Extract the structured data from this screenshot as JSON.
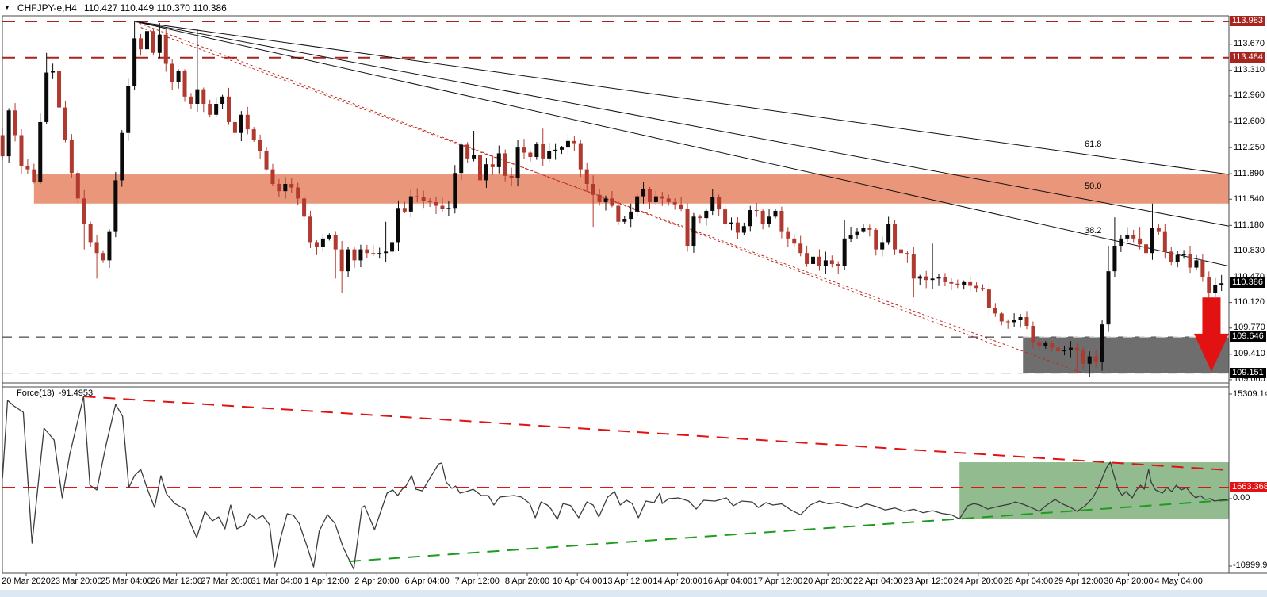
{
  "title": {
    "symbol": "CHFJPY-e,H4",
    "quotes": "110.427 110.449 110.370 110.386"
  },
  "colors": {
    "bull": "#0A0A0A",
    "bear": "#B03A30",
    "supply_zone": "#E9967A",
    "demand_zone": "#6E6E6E",
    "indicator_zone": "#92BC90",
    "maroon": "#A8241E",
    "black_line": "#1A1A1A",
    "bright_red": "#E31212",
    "green": "#1E9C1E",
    "force_line": "#3C3C3C",
    "border": "#4A4A4A",
    "badge_black": "#000000",
    "badge_text": "#FFFFFF",
    "bottom_strip": "#DCE9F5"
  },
  "chart_data": [
    {
      "type": "candlestick",
      "panel": "price",
      "symbol": "CHFJPY-e",
      "timeframe": "H4",
      "ylim": [
        109.0,
        114.06
      ],
      "x_tick_labels": [
        "20 Mar 2020",
        "23 Mar 20:00",
        "25 Mar 04:00",
        "26 Mar 12:00",
        "27 Mar 20:00",
        "31 Mar 04:00",
        "1 Apr 12:00",
        "2 Apr 20:00",
        "6 Apr 04:00",
        "7 Apr 12:00",
        "8 Apr 20:00",
        "10 Apr 04:00",
        "13 Apr 12:00",
        "14 Apr 20:00",
        "16 Apr 04:00",
        "17 Apr 12:00",
        "20 Apr 20:00",
        "22 Apr 04:00",
        "23 Apr 12:00",
        "24 Apr 20:00",
        "28 Apr 04:00",
        "29 Apr 12:00",
        "30 Apr 20:00",
        "4 May 04:00"
      ],
      "y_tick_labels": [
        "113.670",
        "113.310",
        "112.960",
        "112.600",
        "112.250",
        "111.890",
        "111.540",
        "111.180",
        "110.830",
        "110.470",
        "110.120",
        "109.770",
        "109.410",
        "109.060"
      ],
      "first_open": 112.42,
      "closes": [
        112.13,
        112.76,
        112.42,
        112.0,
        111.95,
        111.78,
        112.6,
        113.28,
        113.3,
        112.8,
        112.35,
        111.9,
        111.55,
        111.2,
        110.95,
        110.8,
        110.7,
        111.1,
        111.8,
        112.45,
        113.1,
        113.75,
        113.6,
        113.85,
        113.55,
        113.8,
        113.4,
        113.15,
        113.3,
        112.95,
        112.85,
        113.05,
        112.85,
        112.7,
        112.85,
        112.95,
        112.6,
        112.45,
        112.7,
        112.5,
        112.35,
        112.2,
        111.95,
        111.75,
        111.65,
        111.75,
        111.7,
        111.55,
        111.3,
        110.95,
        110.88,
        111.0,
        111.05,
        110.85,
        110.55,
        110.85,
        110.7,
        110.85,
        110.8,
        110.78,
        110.8,
        110.82,
        110.95,
        111.42,
        111.37,
        111.58,
        111.57,
        111.52,
        111.5,
        111.45,
        111.41,
        111.42,
        111.9,
        112.29,
        112.1,
        112.15,
        111.8,
        112.02,
        111.98,
        112.17,
        111.86,
        111.83,
        112.25,
        112.18,
        112.12,
        112.3,
        112.1,
        112.2,
        112.22,
        112.25,
        112.34,
        112.31,
        111.95,
        111.75,
        111.6,
        111.5,
        111.55,
        111.45,
        111.23,
        111.27,
        111.37,
        111.58,
        111.68,
        111.5,
        111.58,
        111.55,
        111.5,
        111.47,
        111.41,
        110.9,
        111.3,
        111.28,
        111.38,
        111.57,
        111.4,
        111.2,
        111.22,
        111.08,
        111.17,
        111.39,
        111.38,
        111.2,
        111.3,
        111.38,
        111.1,
        111.0,
        110.93,
        110.8,
        110.65,
        110.75,
        110.62,
        110.7,
        110.65,
        110.62,
        111.0,
        111.05,
        111.1,
        111.15,
        111.12,
        110.85,
        110.95,
        111.2,
        110.85,
        110.8,
        110.78,
        110.45,
        110.48,
        110.43,
        110.45,
        110.47,
        110.4,
        110.38,
        110.36,
        110.4,
        110.35,
        110.32,
        110.3,
        110.05,
        109.97,
        109.86,
        109.85,
        109.88,
        109.92,
        109.8,
        109.58,
        109.52,
        109.56,
        109.5,
        109.45,
        109.47,
        109.5,
        109.46,
        109.28,
        109.38,
        109.3,
        109.82,
        110.55,
        110.9,
        111.0,
        111.05,
        111.0,
        110.92,
        110.8,
        111.14,
        111.1,
        110.82,
        110.68,
        110.77,
        110.79,
        110.6,
        110.7,
        110.47,
        110.25,
        110.36,
        110.386
      ],
      "spikes": {
        "7": {
          "h": 113.55
        },
        "13": {
          "l": 110.85
        },
        "15": {
          "l": 110.45
        },
        "21": {
          "h": 113.983
        },
        "23": {
          "h": 113.975
        },
        "25": {
          "h": 113.96
        },
        "31": {
          "h": 113.88
        },
        "49": {
          "l": 110.88
        },
        "53": {
          "l": 110.45
        },
        "54": {
          "l": 110.25
        },
        "61": {
          "h": 111.23
        },
        "72": {
          "h": 111.95
        },
        "75": {
          "h": 112.48
        },
        "86": {
          "h": 112.51
        },
        "94": {
          "l": 111.16
        },
        "134": {
          "h": 111.26
        },
        "145": {
          "l": 110.19
        },
        "148": {
          "h": 110.93
        },
        "168": {
          "l": 109.17
        },
        "171": {
          "l": 109.15
        },
        "173": {
          "l": 109.1
        },
        "176": {
          "h": 110.9
        },
        "177": {
          "h": 111.29
        },
        "181": {
          "h": 111.16
        },
        "183": {
          "h": 111.48
        }
      },
      "levels": [
        {
          "price": 113.983,
          "color_key": "maroon",
          "width": 2,
          "dash": "16 12"
        },
        {
          "price": 113.484,
          "color_key": "maroon",
          "width": 2,
          "dash": "16 12"
        },
        {
          "price": 109.646,
          "color_key": "black_line",
          "width": 1,
          "dash": "12 9"
        },
        {
          "price": 109.151,
          "color_key": "black_line",
          "width": 1,
          "dash": "12 9"
        }
      ],
      "price_badges": [
        {
          "text": "113.983",
          "price": 113.983,
          "bg": "maroon"
        },
        {
          "text": "113.484",
          "price": 113.484,
          "bg": "maroon"
        },
        {
          "text": "110.386",
          "price": 110.386,
          "bg": "black"
        },
        {
          "text": "109.646",
          "price": 109.646,
          "bg": "black"
        },
        {
          "text": "109.151",
          "price": 109.151,
          "bg": "black"
        }
      ],
      "zones": [
        {
          "name": "supply",
          "from_bar": 5,
          "from_price": 111.88,
          "to_price": 111.48,
          "color_key": "supply_zone"
        },
        {
          "name": "demand",
          "from_bar": 162.4,
          "from_price": 109.646,
          "to_price": 109.151,
          "color_key": "demand_zone"
        }
      ],
      "fib_fan": {
        "origin": {
          "bar": 21,
          "price": 113.983
        },
        "lines": [
          {
            "label": "61.8",
            "end_price": 111.88
          },
          {
            "label": "50.0",
            "end_price": 111.17
          },
          {
            "label": "38.2",
            "end_price": 110.62
          }
        ]
      },
      "trendlines": [
        {
          "from": {
            "bar": 21,
            "price": 113.983
          },
          "to": {
            "bar": 158.8,
            "price": 109.51
          }
        },
        {
          "from": {
            "bar": 22,
            "price": 113.9
          },
          "to": {
            "bar": 171.6,
            "price": 109.16
          }
        }
      ],
      "arrow": {
        "bar": 192.4,
        "from_price": 110.19,
        "to_price": 109.17
      }
    },
    {
      "type": "line",
      "panel": "indicator",
      "name": "Force",
      "period": "13",
      "label": "Force(13)",
      "current_value": "-91.4953",
      "y_axis_labels": {
        "top": "15309.142",
        "zero": "0.00",
        "bottom": "-10999.905"
      },
      "level_badge": "1663.3683",
      "level_line": 1663.3683,
      "zone": {
        "from_bar": 152.3,
        "from_value": 5365,
        "to_value": -2960,
        "color_key": "indicator_zone"
      },
      "trendlines": [
        {
          "name": "descending-resistance",
          "color_key": "bright_red",
          "from": {
            "bar": 12.9,
            "value": 14960
          },
          "to": {
            "bar": 195.3,
            "value": 4210
          }
        },
        {
          "name": "ascending-support",
          "color_key": "green",
          "from": {
            "bar": 55.1,
            "value": -9090
          },
          "to": {
            "bar": 195.3,
            "value": -150
          }
        }
      ],
      "points": [
        [
          0,
          3050
        ],
        [
          0.8,
          14380
        ],
        [
          1.8,
          13570
        ],
        [
          3.3,
          12650
        ],
        [
          4.7,
          -6430
        ],
        [
          6.6,
          10340
        ],
        [
          8.2,
          8600
        ],
        [
          9.5,
          160
        ],
        [
          10.7,
          6520
        ],
        [
          12.9,
          14960
        ],
        [
          13.9,
          2010
        ],
        [
          15,
          1320
        ],
        [
          16.5,
          8020
        ],
        [
          18,
          13800
        ],
        [
          19.1,
          12070
        ],
        [
          20.1,
          1670
        ],
        [
          21,
          3400
        ],
        [
          22,
          4320
        ],
        [
          23.1,
          1320
        ],
        [
          24.2,
          -1230
        ],
        [
          25.2,
          3400
        ],
        [
          26.1,
          740
        ],
        [
          27.4,
          -650
        ],
        [
          29,
          -1460
        ],
        [
          30.3,
          -4350
        ],
        [
          30.9,
          -5620
        ],
        [
          32.2,
          -1800
        ],
        [
          33.4,
          -3190
        ],
        [
          34.4,
          -2610
        ],
        [
          35.4,
          -4350
        ],
        [
          36.3,
          -880
        ],
        [
          37.3,
          -4350
        ],
        [
          38.5,
          -3770
        ],
        [
          39.3,
          -2150
        ],
        [
          40.4,
          -2960
        ],
        [
          41.4,
          -2380
        ],
        [
          42.5,
          -3770
        ],
        [
          43.3,
          -9900
        ],
        [
          44.2,
          -5850
        ],
        [
          45.3,
          -2150
        ],
        [
          46.3,
          -2380
        ],
        [
          47.2,
          -3540
        ],
        [
          48.5,
          -7010
        ],
        [
          49.5,
          -9900
        ],
        [
          50.4,
          -4690
        ],
        [
          51.7,
          -2270
        ],
        [
          52.9,
          -3540
        ],
        [
          54.2,
          -7010
        ],
        [
          55.9,
          -10240
        ],
        [
          57.2,
          -1230
        ],
        [
          57.6,
          -990
        ],
        [
          59.2,
          -4460
        ],
        [
          61.2,
          860
        ],
        [
          62.1,
          1320
        ],
        [
          62.9,
          510
        ],
        [
          63.6,
          1430
        ],
        [
          64.2,
          1900
        ],
        [
          65.1,
          3400
        ],
        [
          65.8,
          1430
        ],
        [
          66.8,
          1200
        ],
        [
          69.4,
          5130
        ],
        [
          69.9,
          5250
        ],
        [
          70.6,
          2470
        ],
        [
          71.5,
          1550
        ],
        [
          72.1,
          1900
        ],
        [
          72.8,
          860
        ],
        [
          73.8,
          1090
        ],
        [
          74.9,
          1430
        ],
        [
          76.2,
          510
        ],
        [
          77.3,
          510
        ],
        [
          78.2,
          -880
        ],
        [
          79.1,
          280
        ],
        [
          80.1,
          390
        ],
        [
          81.4,
          510
        ],
        [
          82.6,
          280
        ],
        [
          83.9,
          -650
        ],
        [
          84.8,
          -2730
        ],
        [
          85.7,
          -420
        ],
        [
          86.7,
          -880
        ],
        [
          87.3,
          -1460
        ],
        [
          88.3,
          -2960
        ],
        [
          89.2,
          -650
        ],
        [
          90.4,
          -940
        ],
        [
          91.7,
          -2730
        ],
        [
          93,
          -420
        ],
        [
          94,
          -880
        ],
        [
          94.9,
          -2610
        ],
        [
          96.3,
          280
        ],
        [
          97.4,
          1090
        ],
        [
          98.3,
          -880
        ],
        [
          99.3,
          -180
        ],
        [
          100.2,
          -650
        ],
        [
          101.2,
          -2730
        ],
        [
          102.4,
          -300
        ],
        [
          103.7,
          -530
        ],
        [
          104.6,
          860
        ],
        [
          105,
          -650
        ],
        [
          106,
          50
        ],
        [
          107.6,
          160
        ],
        [
          109.2,
          -300
        ],
        [
          110.4,
          -1460
        ],
        [
          111.6,
          -180
        ],
        [
          113.4,
          -300
        ],
        [
          115.2,
          160
        ],
        [
          116.3,
          -990
        ],
        [
          117.6,
          -300
        ],
        [
          119.3,
          -420
        ],
        [
          120.3,
          -1230
        ],
        [
          121.5,
          -530
        ],
        [
          122.6,
          -880
        ],
        [
          124,
          -700
        ],
        [
          125.5,
          -1600
        ],
        [
          127,
          -2300
        ],
        [
          128.5,
          -900
        ],
        [
          130,
          -300
        ],
        [
          131.5,
          -700
        ],
        [
          133,
          -500
        ],
        [
          134.5,
          -900
        ],
        [
          136,
          -1300
        ],
        [
          137.5,
          -700
        ],
        [
          139,
          -1100
        ],
        [
          140.5,
          -1600
        ],
        [
          142,
          -1300
        ],
        [
          143.5,
          -1800
        ],
        [
          145,
          -1500
        ],
        [
          146.5,
          -2000
        ],
        [
          148,
          -1700
        ],
        [
          149.5,
          -2100
        ],
        [
          151,
          -2300
        ],
        [
          152.3,
          -2900
        ],
        [
          153.6,
          -990
        ],
        [
          154.6,
          -650
        ],
        [
          155.5,
          -880
        ],
        [
          156.8,
          -1460
        ],
        [
          157.7,
          -1230
        ],
        [
          158.9,
          -990
        ],
        [
          160.2,
          -760
        ],
        [
          161.2,
          -420
        ],
        [
          162.4,
          -760
        ],
        [
          163.7,
          -1230
        ],
        [
          165,
          -1800
        ],
        [
          166,
          -990
        ],
        [
          167.5,
          -70
        ],
        [
          168.8,
          -760
        ],
        [
          170,
          -1230
        ],
        [
          171,
          -1800
        ],
        [
          172.3,
          -990
        ],
        [
          173.5,
          160
        ],
        [
          174.4,
          1670
        ],
        [
          175.7,
          4560
        ],
        [
          176.3,
          5370
        ],
        [
          176.9,
          3400
        ],
        [
          177.6,
          1320
        ],
        [
          178.2,
          510
        ],
        [
          178.8,
          1090
        ],
        [
          179.8,
          160
        ],
        [
          180.3,
          1090
        ],
        [
          181.1,
          2010
        ],
        [
          181.7,
          1430
        ],
        [
          182.4,
          4320
        ],
        [
          182.8,
          2470
        ],
        [
          183.5,
          1320
        ],
        [
          184.6,
          860
        ],
        [
          185.3,
          1670
        ],
        [
          186.1,
          1090
        ],
        [
          186.8,
          2010
        ],
        [
          187.6,
          1320
        ],
        [
          188.4,
          1670
        ],
        [
          189.1,
          860
        ],
        [
          189.9,
          160
        ],
        [
          190.6,
          510
        ],
        [
          191.4,
          -70
        ],
        [
          192.2,
          50
        ],
        [
          192.9,
          -300
        ],
        [
          193.7,
          -180
        ],
        [
          194.9,
          -91.5
        ]
      ]
    }
  ]
}
